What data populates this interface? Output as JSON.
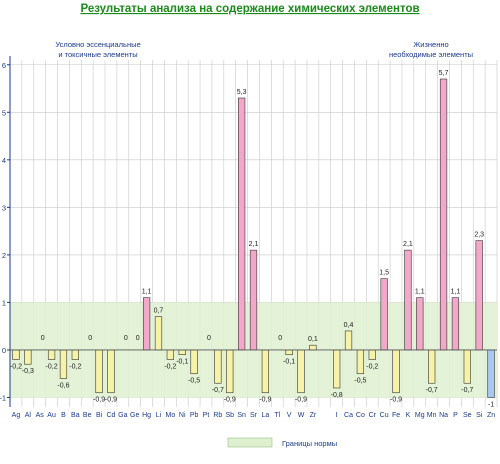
{
  "chart_data": {
    "type": "bar",
    "title": "Результаты анализа на содержание химических элементов",
    "group_labels": [
      {
        "text": [
          "Условно эссенциальные",
          "и токсичные элементы"
        ]
      },
      {
        "text": [
          "Жизненно",
          "необходимые элементы"
        ]
      }
    ],
    "ylim": [
      -1.2,
      6.1
    ],
    "yticks": [
      -1,
      0,
      1,
      2,
      3,
      4,
      5,
      6
    ],
    "norm_range": [
      -1,
      1
    ],
    "legend": {
      "norm_label": "Границы нормы"
    },
    "categories": [
      "Ag",
      "Al",
      "As",
      "Au",
      "B",
      "Ba",
      "Be",
      "Bi",
      "Cd",
      "Ga",
      "Ge",
      "Hg",
      "Li",
      "Mo",
      "Ni",
      "Pb",
      "Pt",
      "Rb",
      "Sb",
      "Sn",
      "Sr",
      "La",
      "Tl",
      "V",
      "W",
      "Zr",
      "",
      "I",
      "Ca",
      "Co",
      "Cr",
      "Cu",
      "Fe",
      "K",
      "Mg",
      "Mn",
      "Na",
      "P",
      "Se",
      "Si",
      "Zn"
    ],
    "values": [
      -0.2,
      -0.3,
      0,
      -0.2,
      -0.6,
      -0.2,
      0,
      -0.9,
      -0.9,
      0,
      0,
      1.1,
      0.7,
      -0.2,
      -0.1,
      -0.5,
      0,
      -0.7,
      -0.9,
      5.3,
      2.1,
      -0.9,
      0,
      -0.1,
      -0.9,
      0.1,
      null,
      -0.8,
      0.4,
      -0.5,
      -0.2,
      1.5,
      -0.9,
      2.1,
      1.1,
      -0.7,
      5.7,
      1.1,
      -0.7,
      2.3,
      -1
    ],
    "data_labels": [
      "-0,2",
      "-0,3",
      "0",
      "-0,2",
      "-0,6",
      "-0,2",
      "0",
      "-0,9",
      "-0,9",
      "0",
      "0",
      "1,1",
      "0,7",
      "-0,2",
      "-0,1",
      "-0,5",
      "0",
      "-0,7",
      "-0,9",
      "5,3",
      "2,1",
      "-0,9",
      "0",
      "-0,1",
      "-0,9",
      "0,1",
      "",
      "-0,8",
      "0,4",
      "-0,5",
      "-0,2",
      "1,5",
      "-0,9",
      "2,1",
      "1,1",
      "-0,7",
      "5,7",
      "1,1",
      "-0,7",
      "2,3",
      "-1"
    ],
    "colors": {
      "normal": "#f6f3a8",
      "high": "#f2a8c8",
      "low": "#a8c8f0",
      "norm_band": "#dff0d0",
      "axis": "#1a3a8a",
      "grid": "#c9c9c9",
      "bar_stroke": "#333333"
    }
  }
}
